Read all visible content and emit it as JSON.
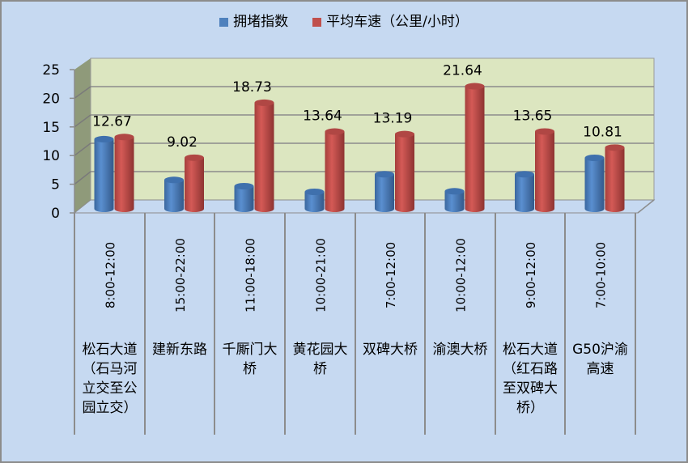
{
  "legend": [
    {
      "label": "拥堵指数",
      "color": "#4f81bd"
    },
    {
      "label": "平均车速（公里/小时）",
      "color": "#c0504d"
    }
  ],
  "colors": {
    "background": "#c6d9f1",
    "wall": "#dce6c0",
    "side_wall": "#8f9a7a",
    "floor": "#c6d9f1",
    "grid": "#8c8c8c",
    "blue": "#4f81bd",
    "red": "#c0504d"
  },
  "y_axis": {
    "ticks": [
      "0",
      "5",
      "10",
      "15",
      "20",
      "25"
    ]
  },
  "categories": [
    {
      "time": "8:00-12:00",
      "name": "松石大道（石马河立交至公园立交）"
    },
    {
      "time": "15:00-22:00",
      "name": "建新东路"
    },
    {
      "time": "11:00-18:00",
      "name": "千厮门大桥"
    },
    {
      "time": "10:00-21:00",
      "name": "黄花园大桥"
    },
    {
      "time": "7:00-12:00",
      "name": "双碑大桥"
    },
    {
      "time": "10:00-12:00",
      "name": "渝澳大桥"
    },
    {
      "time": "9:00-12:00",
      "name": "松石大道（红石路至双碑大桥）"
    },
    {
      "time": "7:00-10:00",
      "name": "G50沪渝高速"
    }
  ],
  "data_labels": [
    "12.67",
    "9.02",
    "18.73",
    "13.64",
    "13.19",
    "21.64",
    "13.65",
    "10.81"
  ],
  "chart_data": {
    "type": "bar",
    "title": "",
    "xlabel": "",
    "ylabel": "",
    "ylim": [
      0,
      25
    ],
    "yticks": [
      0,
      5,
      10,
      15,
      20,
      25
    ],
    "grid": true,
    "legend_position": "top",
    "style": "3D clustered cylinder",
    "categories": [
      "8:00-12:00 松石大道（石马河立交至公园立交）",
      "15:00-22:00 建新东路",
      "11:00-18:00 千厮门大桥",
      "10:00-21:00 黄花园大桥",
      "7:00-12:00 双碑大桥",
      "10:00-12:00 渝澳大桥",
      "9:00-12:00 松石大道（红石路至双碑大桥）",
      "7:00-10:00 G50沪渝高速"
    ],
    "series": [
      {
        "name": "拥堵指数",
        "values": [
          12.3,
          5.1,
          4.0,
          3.0,
          6.1,
          3.1,
          6.1,
          9.0
        ],
        "labeled": false
      },
      {
        "name": "平均车速（公里/小时）",
        "values": [
          12.67,
          9.02,
          18.73,
          13.64,
          13.19,
          21.64,
          13.65,
          10.81
        ],
        "labeled": true
      }
    ]
  }
}
